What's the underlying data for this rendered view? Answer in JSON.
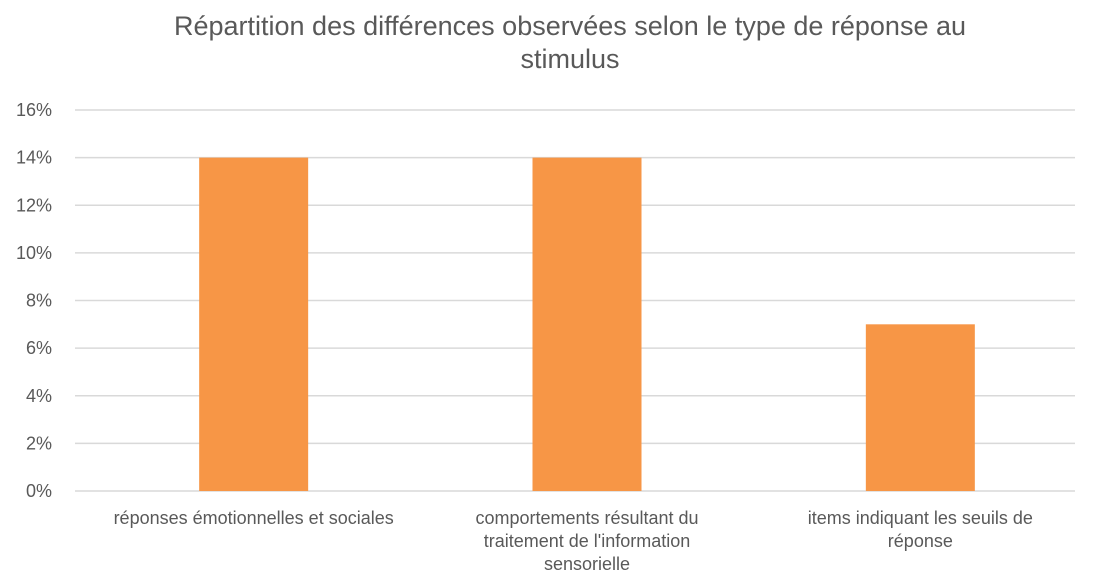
{
  "chart_data": {
    "type": "bar",
    "title_lines": [
      "Répartition des différences observées selon le type de réponse au",
      "stimulus"
    ],
    "categories": [
      [
        "réponses émotionnelles et sociales"
      ],
      [
        "comportements résultant du",
        "traitement de l'information",
        "sensorielle"
      ],
      [
        "items indiquant les seuils de",
        "réponse"
      ]
    ],
    "values": [
      0.14,
      0.14,
      0.07
    ],
    "ylim": [
      0,
      0.16
    ],
    "yticks": [
      "0%",
      "2%",
      "4%",
      "6%",
      "8%",
      "10%",
      "12%",
      "14%",
      "16%"
    ],
    "grid": true,
    "bar_color": "#F79646",
    "grid_color": "#D9D9D9"
  }
}
